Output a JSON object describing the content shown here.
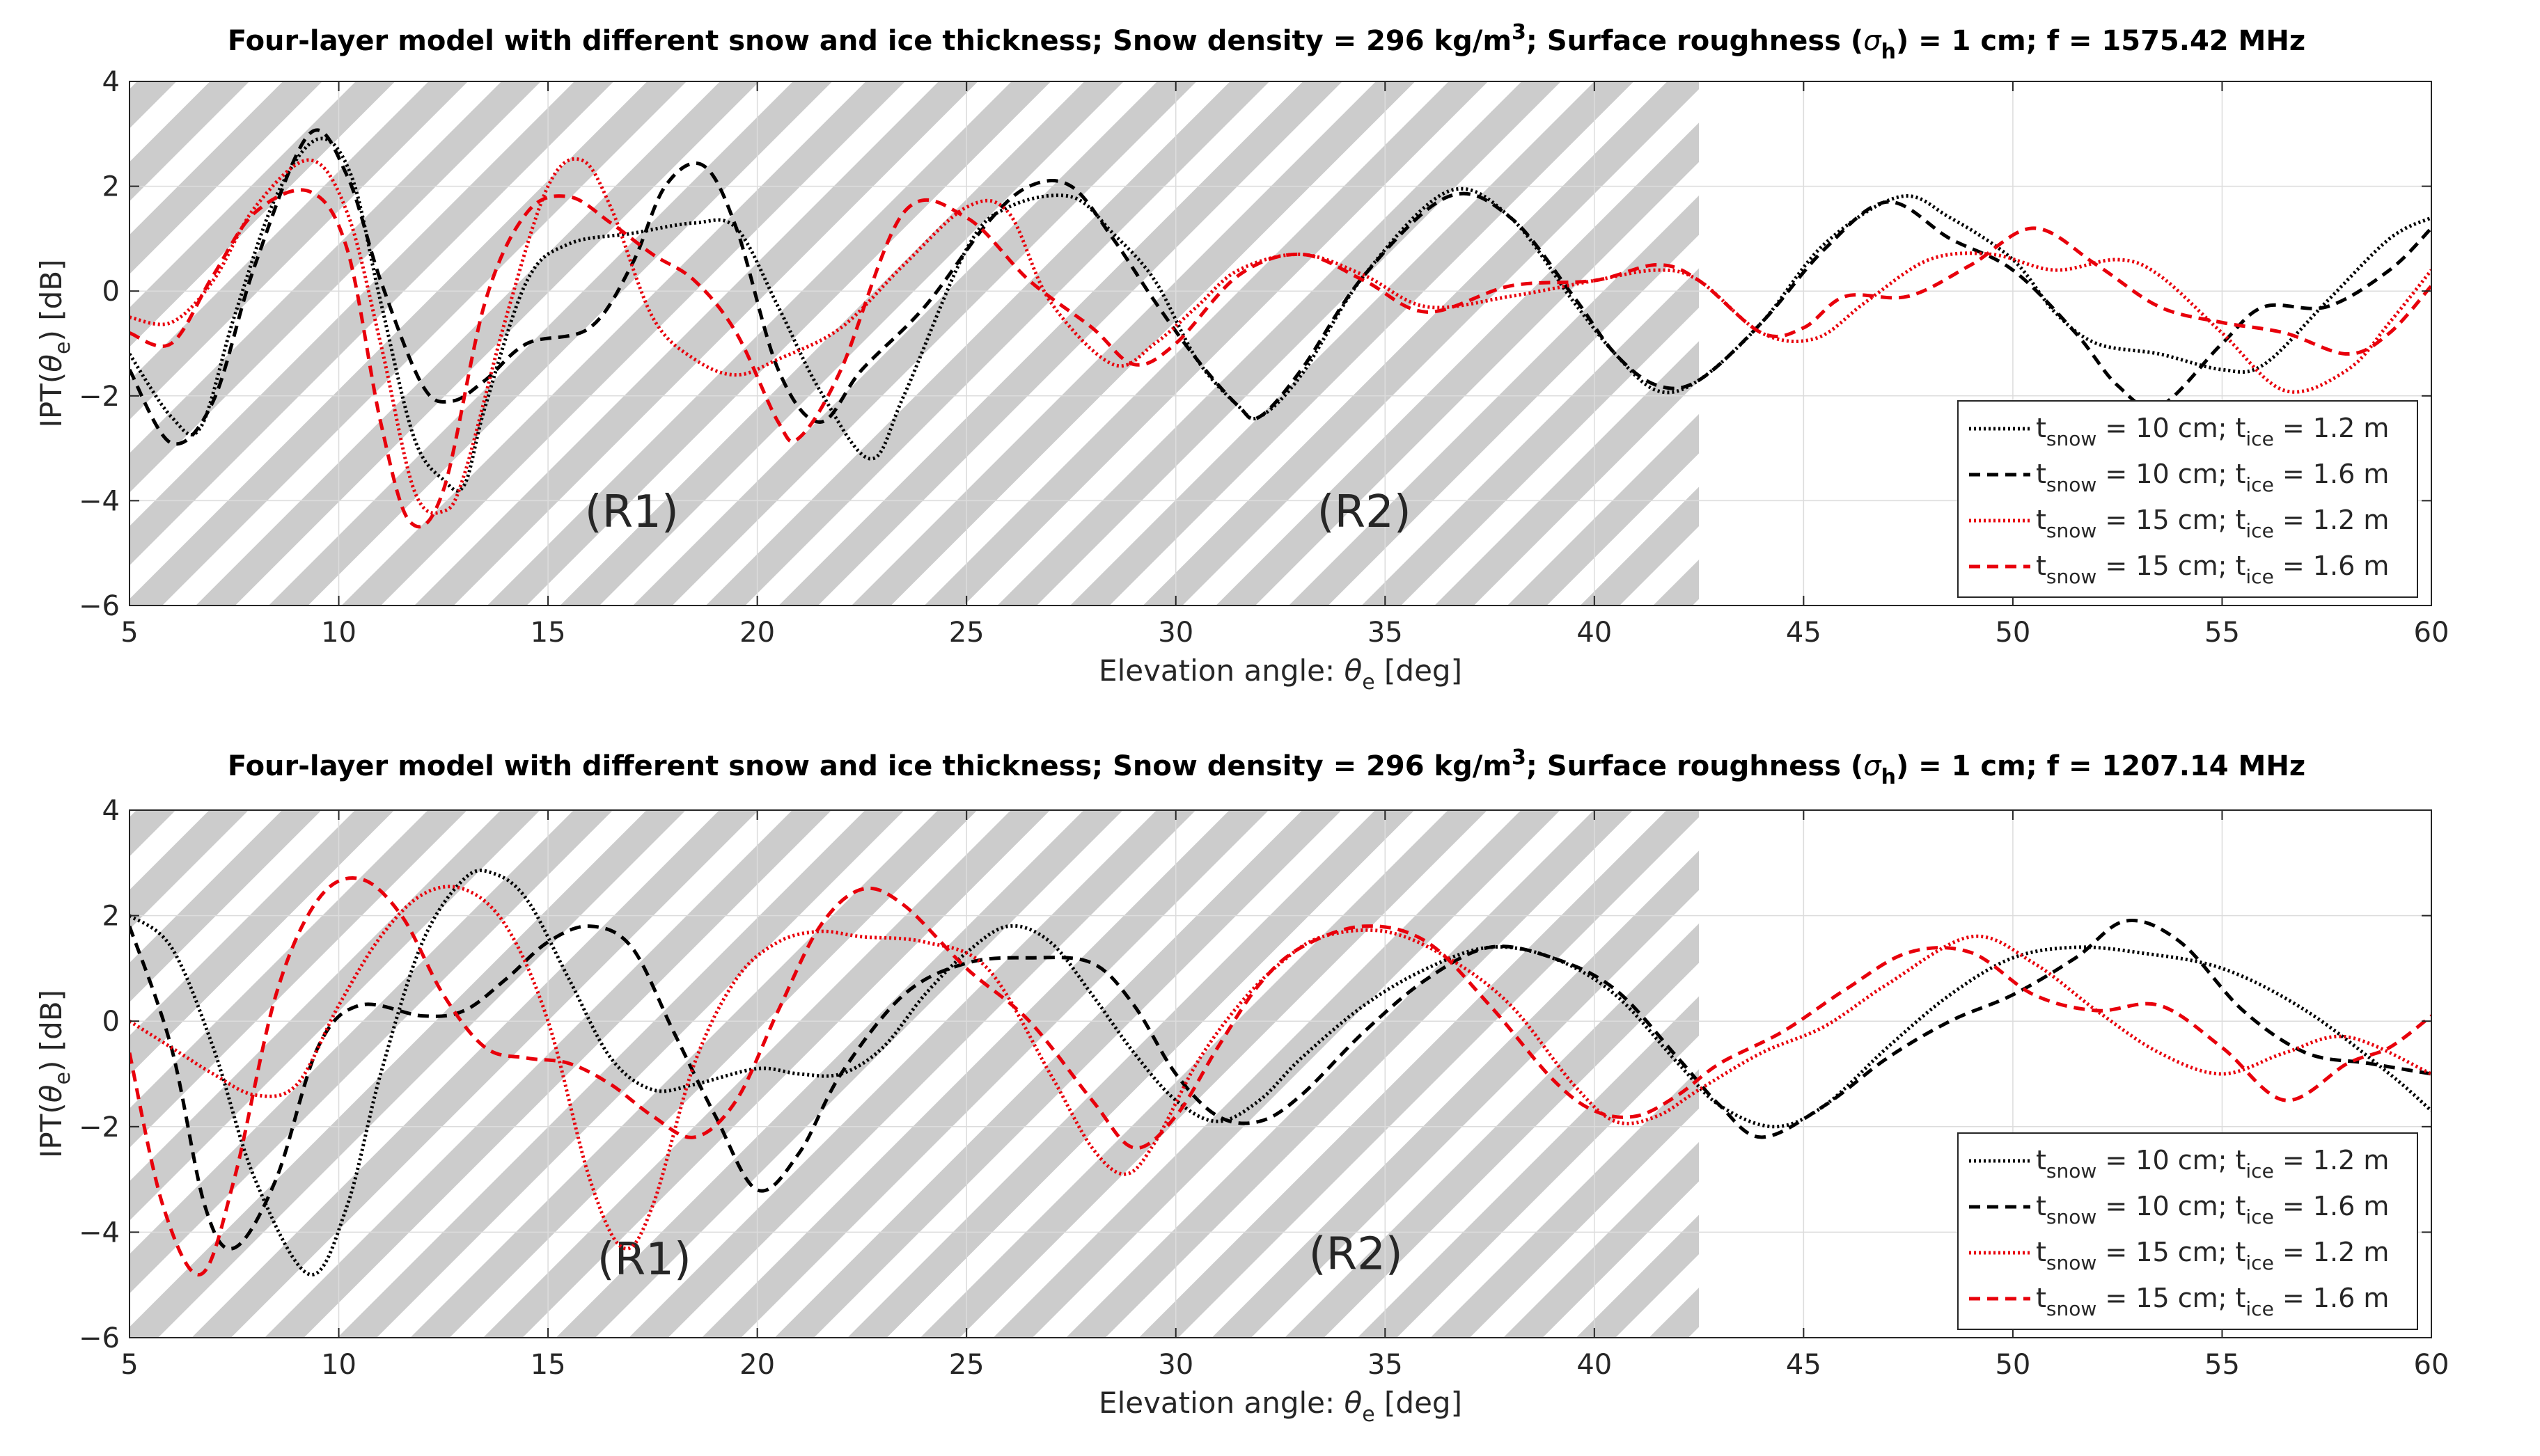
{
  "colors": {
    "black": "#000000",
    "red": "#e8000b",
    "hatch": "#cccccc",
    "grid": "#dcdcdc",
    "axis": "#262626"
  },
  "chart_data": [
    {
      "type": "line",
      "title": {
        "pre": "Four-layer model with different snow and ice thickness; Snow density = 296 kg/m",
        "sup": "3",
        "mid": "; Surface roughness (",
        "sigma": "σ",
        "sigma_sub": "h",
        "post": ") = 1 cm; f = 1575.42 MHz"
      },
      "xlabel": {
        "pre": "Elevation angle: ",
        "theta": "θ",
        "sub": "e",
        "post": " [deg]"
      },
      "ylabel": {
        "pre": "IPT(",
        "theta": "θ",
        "sub": "e",
        "post": ") [dB]"
      },
      "xlim": [
        5,
        60
      ],
      "ylim": [
        -6,
        4
      ],
      "xticks": [
        5,
        10,
        15,
        20,
        25,
        30,
        35,
        40,
        45,
        50,
        55,
        60
      ],
      "yticks": [
        -6,
        -4,
        -2,
        0,
        2,
        4
      ],
      "grid": true,
      "legend_position": "bottom-right",
      "regions": [
        {
          "label": "(R1)",
          "x_range": [
            5,
            30
          ],
          "label_at": [
            17,
            -4.5
          ]
        },
        {
          "label": "(R2)",
          "x_range": [
            30,
            42.5
          ],
          "label_at": [
            34.5,
            -4.5
          ]
        }
      ],
      "series": [
        {
          "name": "t_snow = 10 cm; t_ice = 1.2 m",
          "legend": {
            "t": "t",
            "sub1": "snow",
            "mid": " = 10 cm; t",
            "sub2": "ice",
            "post": " = 1.2 m"
          },
          "color": "#000000",
          "style": "dotted",
          "x": [
            5,
            6,
            6.7,
            7.5,
            8.5,
            9.5,
            10.3,
            11,
            11.8,
            12.5,
            13,
            13.5,
            14.5,
            15.5,
            17,
            18.5,
            19.5,
            20.5,
            21.5,
            22.7,
            23.5,
            25,
            26,
            27.5,
            28.5,
            29.5,
            30.5,
            31.5,
            32,
            33,
            34.5,
            36.5,
            38,
            39.5,
            40.5,
            41.5,
            42.5,
            44,
            45.5,
            47.3,
            48.5,
            50,
            51,
            52,
            53.5,
            55,
            56,
            57.5,
            59,
            60
          ],
          "values": [
            -1.2,
            -2.4,
            -2.6,
            -0.5,
            1.8,
            2.9,
            2.2,
            -0.2,
            -2.8,
            -3.6,
            -3.7,
            -2.2,
            0.2,
            0.9,
            1.1,
            1.3,
            1.2,
            -0.3,
            -1.9,
            -3.2,
            -2.0,
            0.8,
            1.6,
            1.8,
            1.1,
            0.2,
            -1.3,
            -2.2,
            -2.4,
            -1.6,
            0.3,
            1.9,
            1.4,
            -0.2,
            -1.2,
            -1.9,
            -1.7,
            -0.6,
            0.9,
            1.8,
            1.4,
            0.6,
            -0.4,
            -1.0,
            -1.2,
            -1.5,
            -1.4,
            -0.2,
            1.0,
            1.4
          ]
        },
        {
          "name": "t_snow = 10 cm; t_ice = 1.6 m",
          "legend": {
            "t": "t",
            "sub1": "snow",
            "mid": " = 10 cm; t",
            "sub2": "ice",
            "post": " = 1.6 m"
          },
          "color": "#000000",
          "style": "dashed",
          "x": [
            5,
            6,
            7,
            8,
            9.3,
            10.2,
            11,
            12,
            12.7,
            13.5,
            14.5,
            16,
            17,
            17.8,
            18.7,
            19.5,
            20.5,
            21.5,
            22.5,
            24,
            25.5,
            26.5,
            27.5,
            28.5,
            29.5,
            30.5,
            31.5,
            32,
            33,
            34.5,
            36.5,
            38,
            39.5,
            40.5,
            41.5,
            42.5,
            44,
            45.5,
            47,
            48.5,
            50,
            51.5,
            52.5,
            53.5,
            55,
            56,
            57.5,
            59,
            60
          ],
          "values": [
            -1.5,
            -2.9,
            -2.1,
            0.5,
            3.0,
            2.2,
            0.2,
            -1.8,
            -2.1,
            -1.7,
            -1.0,
            -0.7,
            0.5,
            2.0,
            2.4,
            1.2,
            -1.5,
            -2.5,
            -1.5,
            -0.3,
            1.3,
            2.0,
            2.0,
            1.0,
            -0.2,
            -1.3,
            -2.2,
            -2.4,
            -1.5,
            0.3,
            1.8,
            1.4,
            -0.1,
            -1.2,
            -1.8,
            -1.7,
            -0.6,
            0.8,
            1.7,
            1.0,
            0.4,
            -0.8,
            -1.8,
            -2.2,
            -1.0,
            -0.3,
            -0.3,
            0.4,
            1.2
          ]
        },
        {
          "name": "t_snow = 15 cm; t_ice = 1.2 m",
          "legend": {
            "t": "t",
            "sub1": "snow",
            "mid": " = 15 cm; t",
            "sub2": "ice",
            "post": " = 1.2 m"
          },
          "color": "#e8000b",
          "style": "dotted",
          "x": [
            5,
            6,
            7,
            8,
            9.3,
            10.2,
            11,
            11.8,
            12.5,
            13,
            14,
            15,
            15.8,
            16.5,
            17.5,
            18.5,
            19.5,
            20.5,
            22,
            23.5,
            25,
            26,
            27,
            28.5,
            29.5,
            30.5,
            31.5,
            33,
            34.5,
            36,
            38,
            40,
            41.5,
            42.5,
            44,
            45.3,
            46.5,
            48,
            49.5,
            51,
            52.5,
            53.5,
            55,
            56.5,
            58,
            59,
            60
          ],
          "values": [
            -0.5,
            -0.6,
            0.2,
            1.6,
            2.5,
            1.5,
            -1.0,
            -3.8,
            -4.2,
            -3.5,
            -0.5,
            2.0,
            2.5,
            1.6,
            -0.5,
            -1.3,
            -1.6,
            -1.3,
            -0.7,
            0.5,
            1.6,
            1.5,
            -0.2,
            -1.4,
            -1.0,
            -0.3,
            0.4,
            0.7,
            0.3,
            -0.3,
            -0.1,
            0.2,
            0.4,
            0.2,
            -0.8,
            -0.9,
            -0.2,
            0.6,
            0.7,
            0.4,
            0.6,
            0.3,
            -0.8,
            -1.9,
            -1.5,
            -0.6,
            0.4
          ]
        },
        {
          "name": "t_snow = 15 cm; t_ice = 1.6 m",
          "legend": {
            "t": "t",
            "sub1": "snow",
            "mid": " = 15 cm; t",
            "sub2": "ice",
            "post": " = 1.6 m"
          },
          "color": "#e8000b",
          "style": "dashed",
          "x": [
            5,
            6,
            7,
            8,
            9.3,
            10.2,
            11,
            11.7,
            12.5,
            13.5,
            14.5,
            15.5,
            16.5,
            17.5,
            18.5,
            19.5,
            20.5,
            21,
            22,
            23.5,
            25,
            26.5,
            28,
            29,
            30,
            31.5,
            33,
            34.5,
            36,
            38,
            40,
            41.5,
            42.5,
            44,
            45,
            46,
            47.5,
            49,
            50.5,
            52,
            53.5,
            55,
            56.5,
            58,
            59,
            60
          ],
          "values": [
            -0.8,
            -1.0,
            0.3,
            1.5,
            1.9,
            0.8,
            -2.5,
            -4.4,
            -3.8,
            -0.2,
            1.5,
            1.8,
            1.3,
            0.7,
            0.2,
            -0.8,
            -2.5,
            -2.8,
            -1.5,
            1.5,
            1.4,
            0.2,
            -0.7,
            -1.4,
            -1.0,
            0.3,
            0.7,
            0.2,
            -0.4,
            0.1,
            0.2,
            0.5,
            0.2,
            -0.8,
            -0.7,
            -0.1,
            -0.1,
            0.5,
            1.2,
            0.5,
            -0.3,
            -0.6,
            -0.8,
            -1.2,
            -0.8,
            0.1
          ]
        }
      ]
    },
    {
      "type": "line",
      "title": {
        "pre": "Four-layer model with different snow and ice thickness; Snow density = 296 kg/m",
        "sup": "3",
        "mid": "; Surface roughness (",
        "sigma": "σ",
        "sigma_sub": "h",
        "post": ") = 1 cm; f = 1207.14 MHz"
      },
      "xlabel": {
        "pre": "Elevation angle: ",
        "theta": "θ",
        "sub": "e",
        "post": " [deg]"
      },
      "ylabel": {
        "pre": "IPT(",
        "theta": "θ",
        "sub": "e",
        "post": ") [dB]"
      },
      "xlim": [
        5,
        60
      ],
      "ylim": [
        -6,
        4
      ],
      "xticks": [
        5,
        10,
        15,
        20,
        25,
        30,
        35,
        40,
        45,
        50,
        55,
        60
      ],
      "yticks": [
        -6,
        -4,
        -2,
        0,
        2,
        4
      ],
      "grid": true,
      "legend_position": "bottom-right",
      "regions": [
        {
          "label": "(R1)",
          "x_range": [
            5,
            30
          ],
          "label_at": [
            17.3,
            -4.8
          ]
        },
        {
          "label": "(R2)",
          "x_range": [
            30,
            42.5
          ],
          "label_at": [
            34.3,
            -4.7
          ]
        }
      ],
      "series": [
        {
          "name": "t_snow = 10 cm; t_ice = 1.2 m",
          "legend": {
            "t": "t",
            "sub1": "snow",
            "mid": " = 10 cm; t",
            "sub2": "ice",
            "post": " = 1.2 m"
          },
          "color": "#000000",
          "style": "dotted",
          "x": [
            5,
            6,
            7,
            8,
            9.3,
            10.2,
            11,
            12,
            13,
            13.7,
            14.5,
            15.5,
            16.5,
            17.5,
            18.5,
            20,
            21,
            22,
            23,
            24,
            25,
            26,
            27,
            28,
            29,
            30,
            31,
            32,
            33,
            34.5,
            36,
            37.5,
            39,
            40.5,
            42,
            43,
            44.3,
            45.5,
            47,
            48.5,
            50,
            51.5,
            53,
            55,
            57,
            59,
            60
          ],
          "values": [
            2.0,
            1.4,
            -0.5,
            -3.0,
            -4.8,
            -3.5,
            -1.0,
            1.5,
            2.7,
            2.8,
            2.3,
            0.8,
            -0.7,
            -1.3,
            -1.2,
            -0.9,
            -1.0,
            -1.0,
            -0.5,
            0.5,
            1.3,
            1.8,
            1.5,
            0.5,
            -0.6,
            -1.5,
            -1.9,
            -1.5,
            -0.7,
            0.3,
            1.0,
            1.4,
            1.2,
            0.5,
            -0.8,
            -1.6,
            -2.0,
            -1.6,
            -0.5,
            0.5,
            1.2,
            1.4,
            1.3,
            1.0,
            0.2,
            -1.0,
            -1.7
          ]
        },
        {
          "name": "t_snow = 10 cm; t_ice = 1.6 m",
          "legend": {
            "t": "t",
            "sub1": "snow",
            "mid": " = 10 cm; t",
            "sub2": "ice",
            "post": " = 1.6 m"
          },
          "color": "#000000",
          "style": "dashed",
          "x": [
            5,
            6,
            6.8,
            7.5,
            8.5,
            9.5,
            10.5,
            12,
            13,
            14,
            15,
            16,
            17,
            18,
            19,
            20,
            21,
            22,
            23.5,
            25,
            26.5,
            28,
            29,
            30,
            31,
            32,
            33,
            34.5,
            36,
            37.5,
            39,
            40.5,
            42,
            43,
            44,
            45.5,
            47,
            48.5,
            50,
            51.5,
            52.7,
            54,
            55.5,
            57,
            58.5,
            60
          ],
          "values": [
            1.8,
            -0.5,
            -3.5,
            -4.3,
            -3.0,
            -0.5,
            0.3,
            0.1,
            0.2,
            0.8,
            1.5,
            1.8,
            1.4,
            -0.2,
            -1.8,
            -3.2,
            -2.5,
            -1.0,
            0.5,
            1.1,
            1.2,
            1.1,
            0.3,
            -1.0,
            -1.8,
            -1.9,
            -1.4,
            -0.2,
            0.8,
            1.4,
            1.2,
            0.6,
            -0.7,
            -1.6,
            -2.2,
            -1.6,
            -0.7,
            0.0,
            0.5,
            1.2,
            1.9,
            1.5,
            0.2,
            -0.6,
            -0.8,
            -1.0
          ]
        },
        {
          "name": "t_snow = 15 cm; t_ice = 1.2 m",
          "legend": {
            "t": "t",
            "sub1": "snow",
            "mid": " = 15 cm; t",
            "sub2": "ice",
            "post": " = 1.2 m"
          },
          "color": "#e8000b",
          "style": "dotted",
          "x": [
            5,
            6,
            7,
            8,
            9,
            10,
            11,
            12,
            13,
            14,
            15,
            16,
            16.8,
            17.5,
            18.5,
            19.5,
            20.5,
            21.5,
            22.5,
            24,
            25.5,
            27,
            28,
            28.8,
            29.5,
            30.5,
            31.5,
            32.5,
            33.5,
            35,
            36.5,
            38,
            39.5,
            40.5,
            41.5,
            42.5,
            44,
            45.5,
            47,
            49,
            50.5,
            52,
            53.5,
            55,
            56.5,
            58,
            60
          ],
          "values": [
            0.0,
            -0.5,
            -1.0,
            -1.4,
            -1.2,
            0.3,
            1.6,
            2.4,
            2.5,
            1.8,
            0.0,
            -3.0,
            -4.3,
            -3.5,
            -0.8,
            0.8,
            1.5,
            1.7,
            1.6,
            1.5,
            1.0,
            -1.0,
            -2.4,
            -2.9,
            -2.3,
            -0.8,
            0.3,
            1.1,
            1.6,
            1.7,
            1.2,
            0.3,
            -1.2,
            -1.9,
            -1.8,
            -1.3,
            -0.6,
            -0.1,
            0.7,
            1.6,
            1.1,
            0.2,
            -0.6,
            -1.0,
            -0.6,
            -0.3,
            -1.0
          ]
        },
        {
          "name": "t_snow = 15 cm; t_ice = 1.6 m",
          "legend": {
            "t": "t",
            "sub1": "snow",
            "mid": " = 15 cm; t",
            "sub2": "ice",
            "post": " = 1.6 m"
          },
          "color": "#e8000b",
          "style": "dashed",
          "x": [
            5,
            5.8,
            6.7,
            7.5,
            8.5,
            9.5,
            10.5,
            11.5,
            12.5,
            13.5,
            14.5,
            15.5,
            16.5,
            17.5,
            18.5,
            19.5,
            20.5,
            21.5,
            22.5,
            23.5,
            25,
            26.5,
            28,
            29,
            30,
            31,
            32,
            33,
            34.5,
            36,
            37.5,
            39,
            40,
            41,
            42,
            43,
            44.5,
            46,
            47.5,
            49,
            50.5,
            52,
            53.5,
            55,
            56.5,
            58,
            59,
            60
          ],
          "values": [
            -0.6,
            -3.5,
            -4.8,
            -3.0,
            0.5,
            2.3,
            2.7,
            2.0,
            0.5,
            -0.5,
            -0.7,
            -0.8,
            -1.2,
            -1.8,
            -2.2,
            -1.5,
            0.2,
            1.8,
            2.5,
            2.2,
            1.0,
            0.0,
            -1.5,
            -2.4,
            -1.8,
            -0.5,
            0.7,
            1.4,
            1.8,
            1.5,
            0.3,
            -1.1,
            -1.7,
            -1.8,
            -1.4,
            -0.8,
            -0.2,
            0.6,
            1.3,
            1.3,
            0.5,
            0.2,
            0.3,
            -0.5,
            -1.5,
            -0.8,
            -0.5,
            0.1
          ]
        }
      ]
    }
  ]
}
